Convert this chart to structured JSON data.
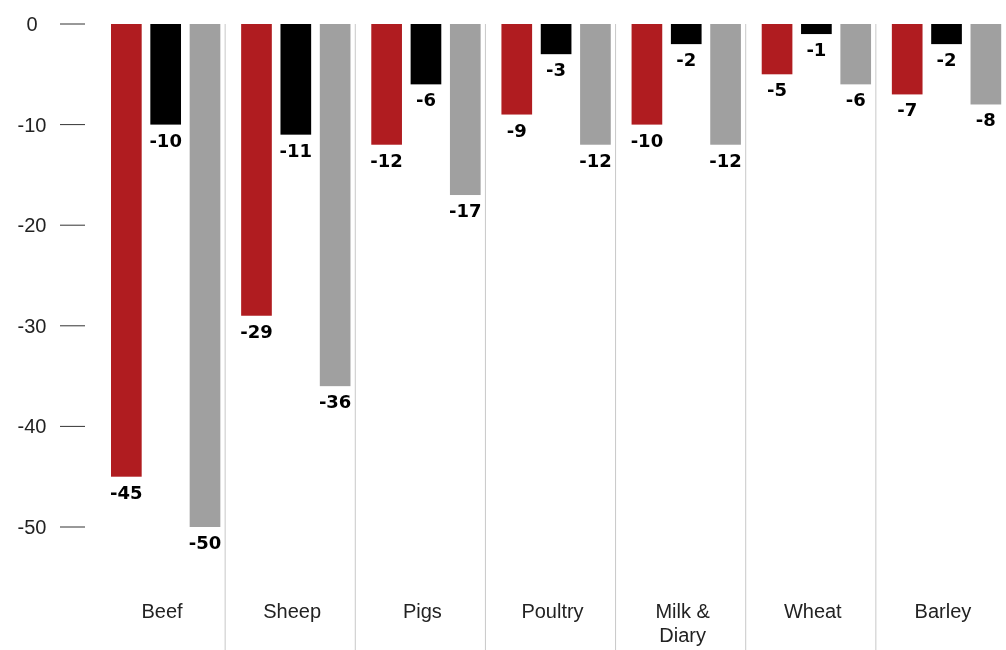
{
  "chart_data": {
    "type": "bar",
    "categories": [
      "Beef",
      "Sheep",
      "Pigs",
      "Poultry",
      "Milk & Diary",
      "Wheat",
      "Barley"
    ],
    "series": [
      {
        "color": "#b01c20",
        "values": [
          -45,
          -29,
          -12,
          -9,
          -10,
          -5,
          -7
        ]
      },
      {
        "color": "#000000",
        "values": [
          -10,
          -11,
          -6,
          -3,
          -2,
          -1,
          -2
        ]
      },
      {
        "color": "#a0a0a0",
        "values": [
          -50,
          -36,
          -17,
          -12,
          -12,
          -6,
          -8
        ]
      }
    ],
    "ylim": [
      -50,
      0
    ],
    "yticks": [
      0,
      -10,
      -20,
      -30,
      -40,
      -50
    ],
    "grid": false,
    "data_labels": true
  }
}
